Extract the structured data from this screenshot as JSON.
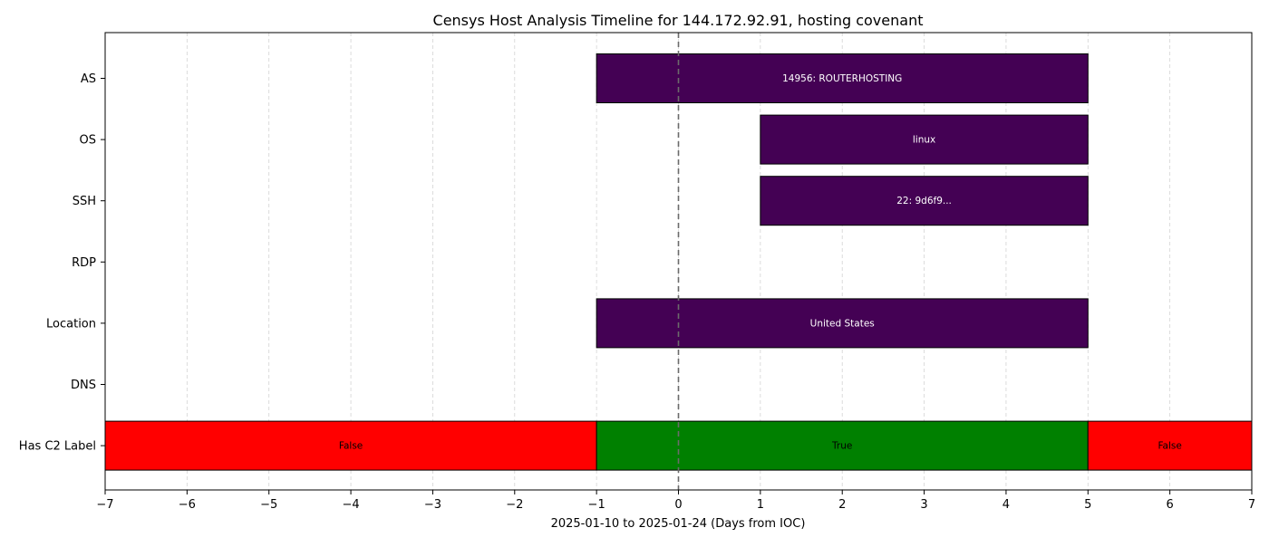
{
  "chart_data": {
    "type": "bar",
    "title": "Censys Host Analysis Timeline for 144.172.92.91, hosting covenant",
    "xlabel": "2025-01-10 to 2025-01-24 (Days from IOC)",
    "ylabel": "",
    "xlim": [
      -7,
      7
    ],
    "x_ticks": [
      -7,
      -6,
      -5,
      -4,
      -3,
      -2,
      -1,
      0,
      1,
      2,
      3,
      4,
      5,
      6,
      7
    ],
    "x_tick_labels": [
      "−7",
      "−6",
      "−5",
      "−4",
      "−3",
      "−2",
      "−1",
      "0",
      "1",
      "2",
      "3",
      "4",
      "5",
      "6",
      "7"
    ],
    "grid": "vertical dashed",
    "ioc_marker_x": 0,
    "categories": [
      "AS",
      "OS",
      "SSH",
      "RDP",
      "Location",
      "DNS",
      "Has C2 Label"
    ],
    "segments": [
      {
        "row": "AS",
        "start": -1,
        "end": 5,
        "label": "14956: ROUTERHOSTING",
        "color": "#440154",
        "text_color": "#ffffff"
      },
      {
        "row": "OS",
        "start": 1,
        "end": 5,
        "label": "linux",
        "color": "#440154",
        "text_color": "#ffffff"
      },
      {
        "row": "SSH",
        "start": 1,
        "end": 5,
        "label": "22: 9d6f9...",
        "color": "#440154",
        "text_color": "#ffffff"
      },
      {
        "row": "Location",
        "start": -1,
        "end": 5,
        "label": "United States",
        "color": "#440154",
        "text_color": "#ffffff"
      },
      {
        "row": "Has C2 Label",
        "start": -7,
        "end": -1,
        "label": "False",
        "color": "#ff0000",
        "text_color": "#000000"
      },
      {
        "row": "Has C2 Label",
        "start": -1,
        "end": 5,
        "label": "True",
        "color": "#008000",
        "text_color": "#000000"
      },
      {
        "row": "Has C2 Label",
        "start": 5,
        "end": 7,
        "label": "False",
        "color": "#ff0000",
        "text_color": "#000000"
      }
    ]
  }
}
